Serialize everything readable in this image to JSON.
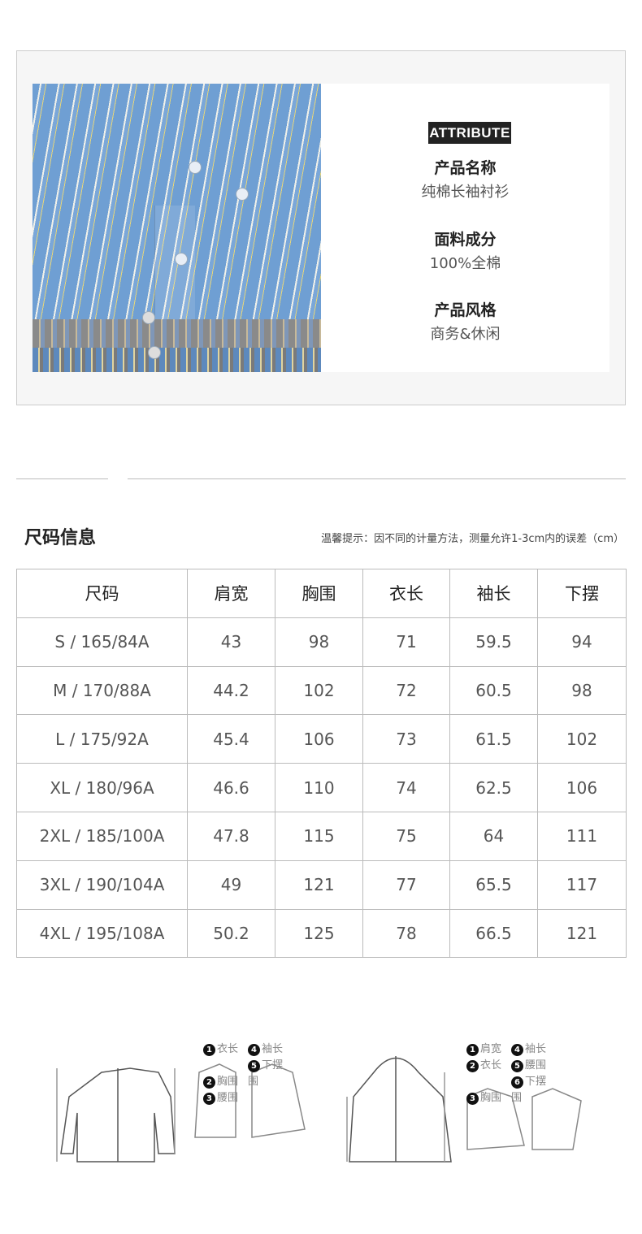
{
  "attribute": {
    "tag": "ATTRIBUTE",
    "items": [
      {
        "key": "产品名称",
        "value": "纯棉长袖衬衫"
      },
      {
        "key": "面料成分",
        "value": "100%全棉"
      },
      {
        "key": "产品风格",
        "value": "商务&休闲"
      }
    ]
  },
  "size": {
    "title": "尺码信息",
    "note": "温馨提示：因不同的计量方法，测量允许1-3cm内的误差（cm）",
    "headers": [
      "尺码",
      "肩宽",
      "胸围",
      "衣长",
      "袖长",
      "下摆"
    ],
    "rows": [
      [
        "S / 165/84A",
        "43",
        "98",
        "71",
        "59.5",
        "94"
      ],
      [
        "M / 170/88A",
        "44.2",
        "102",
        "72",
        "60.5",
        "98"
      ],
      [
        "L / 175/92A",
        "45.4",
        "106",
        "73",
        "61.5",
        "102"
      ],
      [
        "XL / 180/96A",
        "46.6",
        "110",
        "74",
        "62.5",
        "106"
      ],
      [
        "2XL / 185/100A",
        "47.8",
        "115",
        "75",
        "64",
        "111"
      ],
      [
        "3XL / 190/104A",
        "49",
        "121",
        "77",
        "65.5",
        "117"
      ],
      [
        "4XL / 195/108A",
        "50.2",
        "125",
        "78",
        "66.5",
        "121"
      ]
    ]
  },
  "diagram": {
    "left_legend": [
      [
        "1",
        "衣长"
      ],
      [
        "4",
        "袖长"
      ],
      [
        "2",
        "胸围"
      ],
      [
        "5",
        "下摆围"
      ],
      [
        "3",
        "腰围"
      ]
    ],
    "right_legend": [
      [
        "1",
        "肩宽"
      ],
      [
        "4",
        "袖长"
      ],
      [
        "2",
        "衣长"
      ],
      [
        "5",
        "腰围"
      ],
      [
        "3",
        "胸围"
      ],
      [
        "6",
        "下摆围"
      ]
    ]
  }
}
